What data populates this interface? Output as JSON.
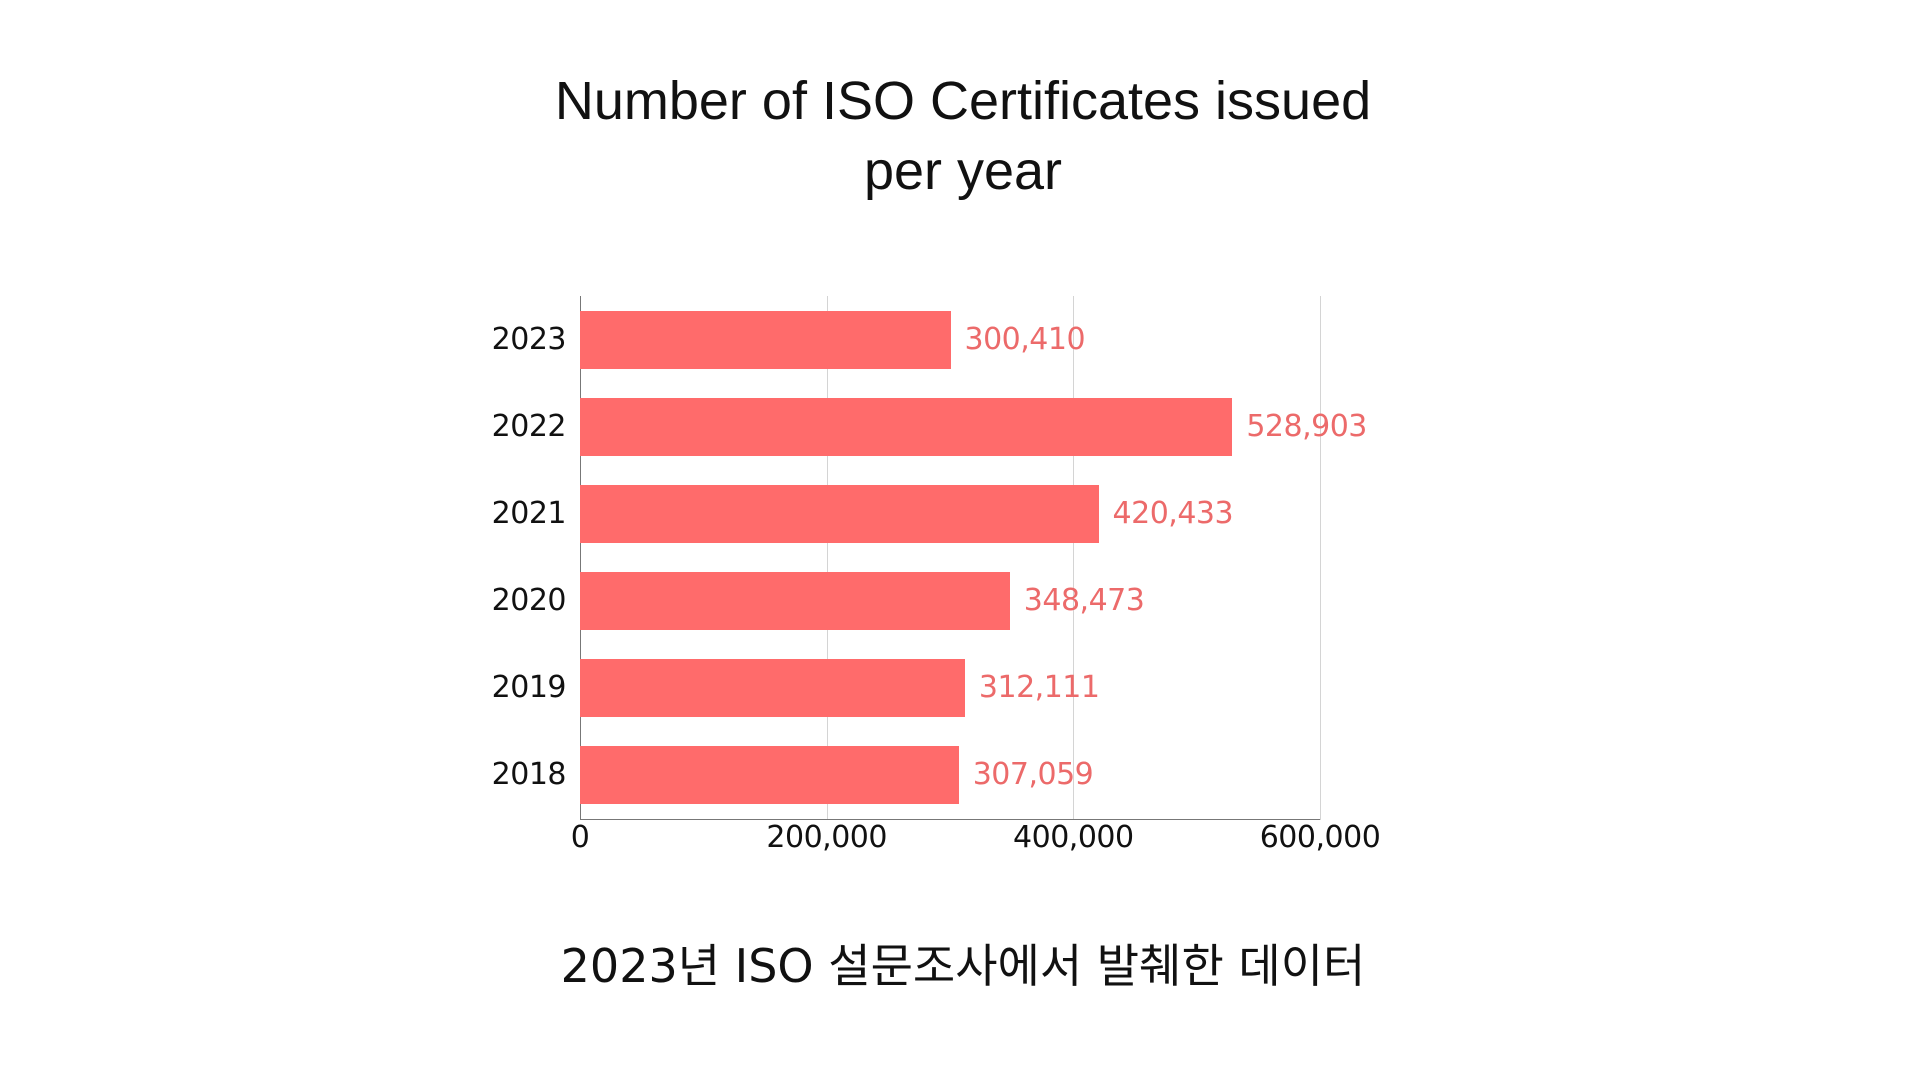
{
  "chart": {
    "title_line1": "Number of ISO Certificates issued",
    "title_line2": "per year",
    "caption": "2023년 ISO 설문조사에서 발췌한 데이터",
    "bar_color": "#ff6b6b",
    "label_color": "#ec6a6a",
    "categories": [
      "2023",
      "2022",
      "2021",
      "2020",
      "2019",
      "2018"
    ],
    "value_labels": [
      "300,410",
      "528,903",
      "420,433",
      "348,473",
      "312,111",
      "307,059"
    ],
    "ticks": [
      "0",
      "200,000",
      "400,000",
      "600,000"
    ]
  },
  "chart_data": {
    "type": "bar",
    "orientation": "horizontal",
    "title": "Number of ISO Certificates issued per year",
    "subtitle": "",
    "caption": "2023년 ISO 설문조사에서 발췌한 데이터",
    "categories": [
      "2023",
      "2022",
      "2021",
      "2020",
      "2019",
      "2018"
    ],
    "values": [
      300410,
      528903,
      420433,
      348473,
      312111,
      307059
    ],
    "xlabel": "",
    "ylabel": "",
    "xlim": [
      0,
      600000
    ],
    "xticks": [
      0,
      200000,
      400000,
      600000
    ],
    "grid": true,
    "legend": null,
    "data_labels": true
  }
}
